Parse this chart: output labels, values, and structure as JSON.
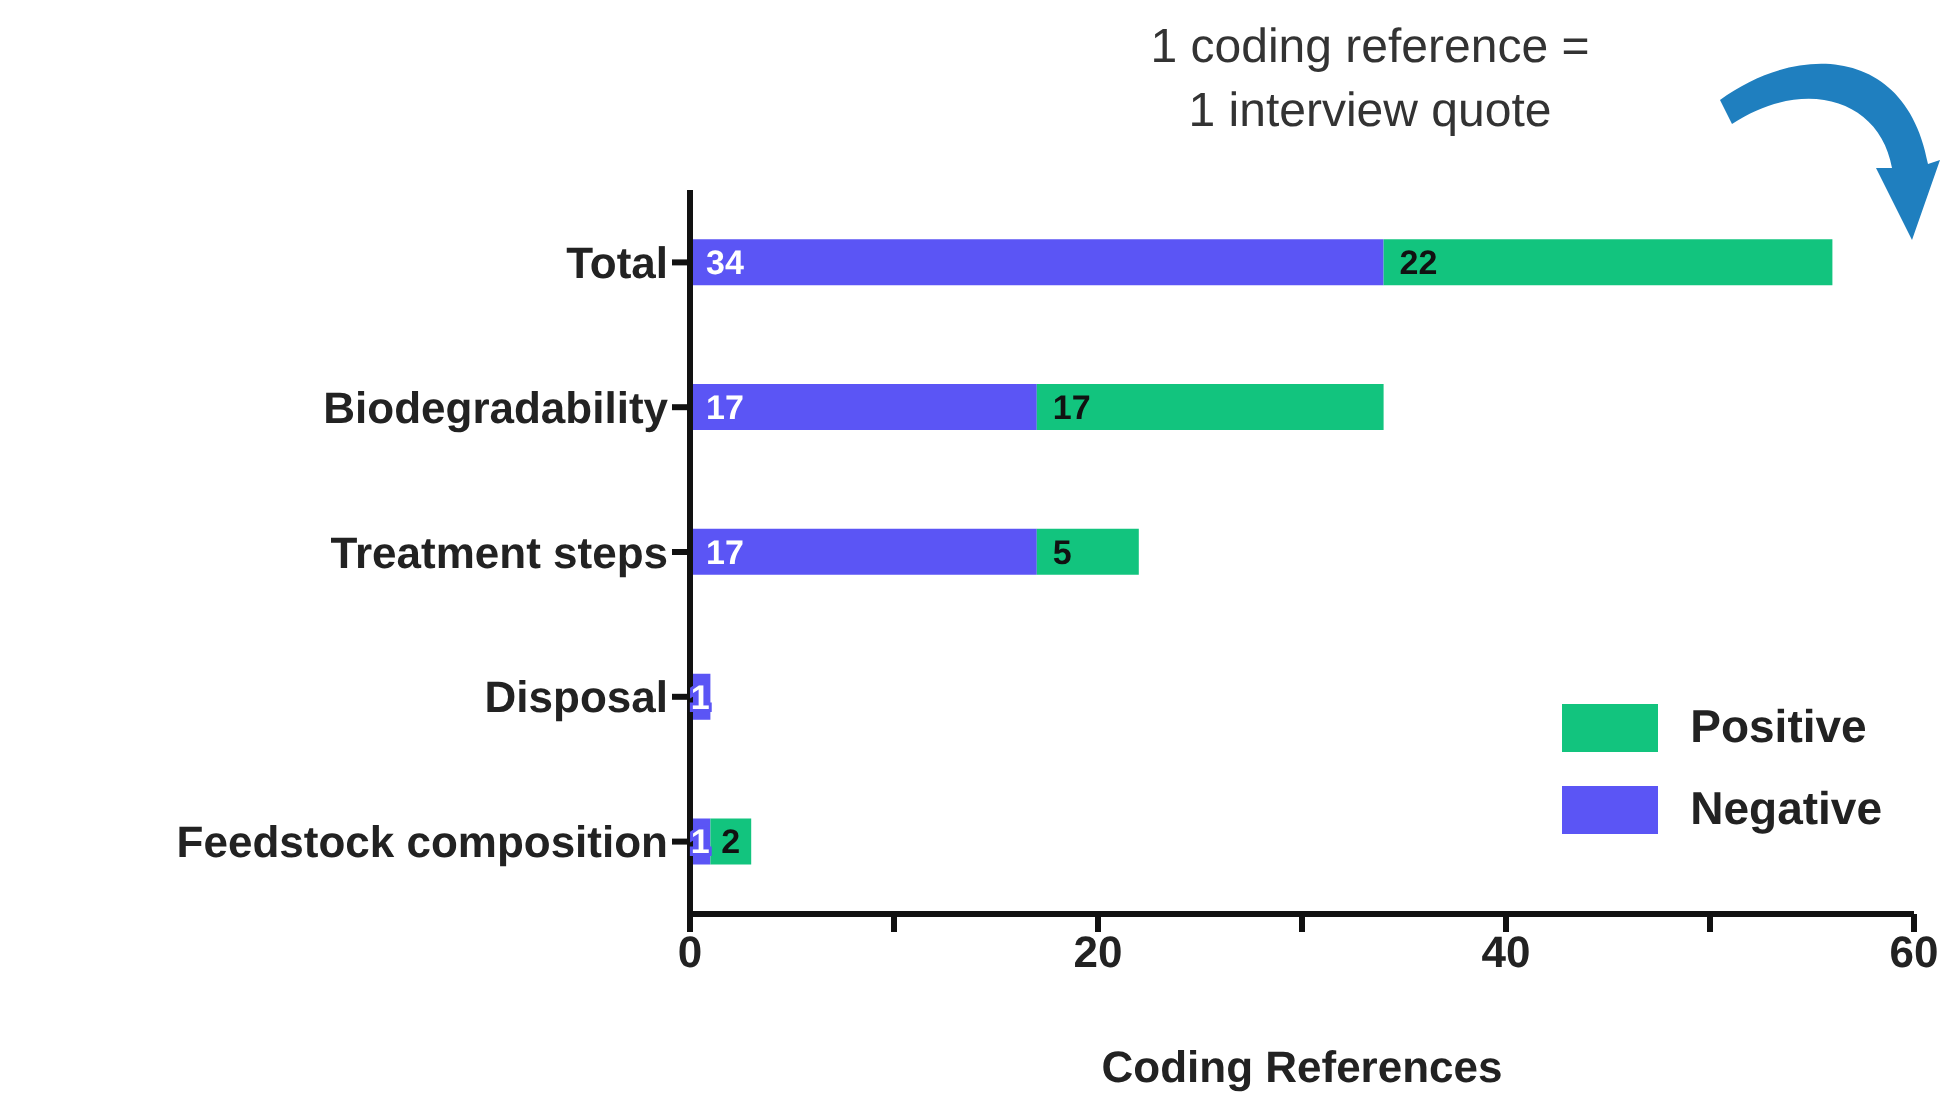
{
  "chart_data": {
    "type": "bar",
    "orientation": "horizontal",
    "stacked": true,
    "xlabel": "Coding  References",
    "annotations": [
      "1 coding reference =\n1 interview quote"
    ],
    "categories": [
      "Total",
      "Biodegradability",
      "Treatment steps",
      "Disposal",
      "Feedstock composition"
    ],
    "series": [
      {
        "name": "Negative",
        "color": "#5b55f5",
        "values": [
          34,
          17,
          17,
          1,
          1
        ],
        "value_labels": [
          "34",
          "17",
          "17",
          "1",
          "1"
        ]
      },
      {
        "name": "Positive",
        "color": "#12c47e",
        "values": [
          22,
          17,
          5,
          0,
          2
        ],
        "value_labels": [
          "22",
          "17",
          "5",
          null,
          "2"
        ]
      }
    ],
    "xlim": [
      0,
      60
    ],
    "xticks": [
      0,
      {
        "value": 10,
        "label": null
      },
      20,
      {
        "value": 30,
        "label": null
      },
      40,
      {
        "value": 50,
        "label": null
      },
      60
    ],
    "grid": false,
    "legend": "bottom right"
  }
}
